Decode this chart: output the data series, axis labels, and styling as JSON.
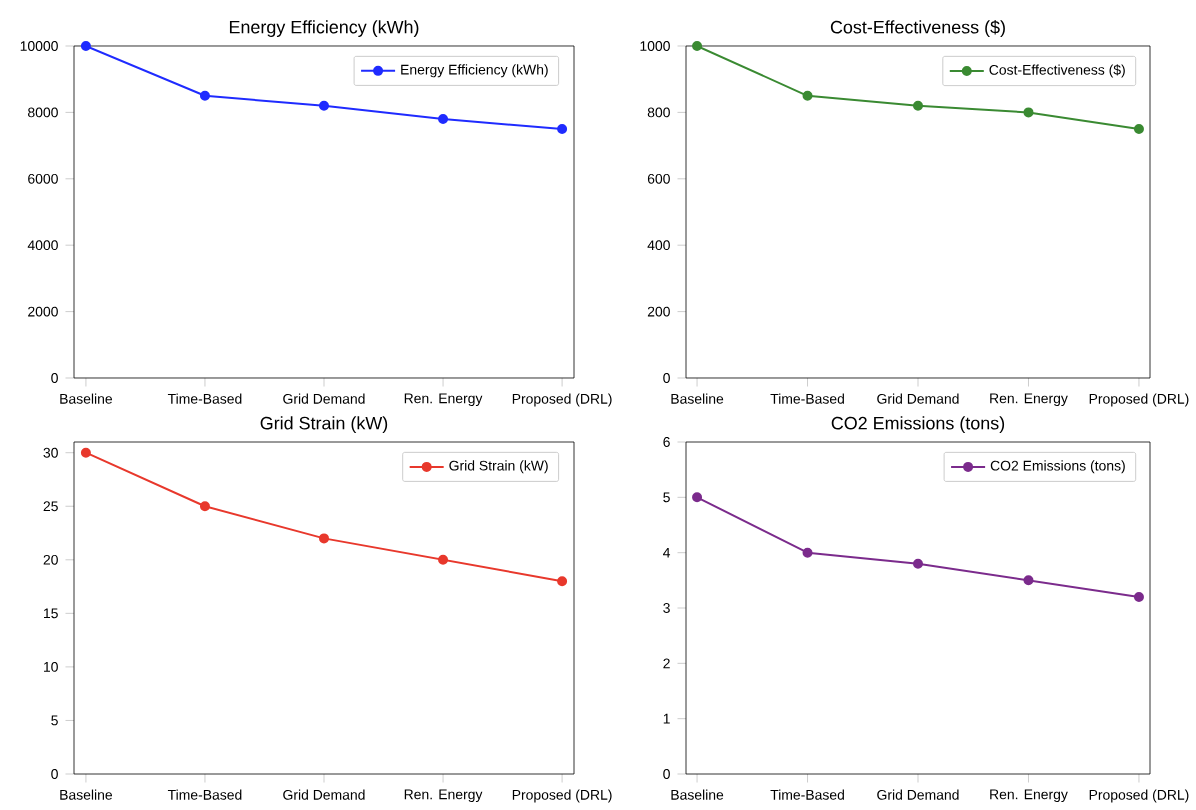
{
  "chart_data": [
    {
      "type": "line",
      "title": "Energy Efficiency (kWh)",
      "categories": [
        "Baseline",
        "Time-Based",
        "Grid Demand",
        "Ren. Energy",
        "Proposed (DRL)"
      ],
      "series": [
        {
          "name": "Energy Efficiency (kWh)",
          "color": "#1f2bff",
          "values": [
            10000,
            8500,
            8200,
            7800,
            7500
          ]
        }
      ],
      "ylim": [
        0,
        10000
      ],
      "yticks": [
        0,
        2000,
        4000,
        6000,
        8000,
        10000
      ],
      "legend": "top right",
      "marker": "circle"
    },
    {
      "type": "line",
      "title": "Cost-Effectiveness ($)",
      "categories": [
        "Baseline",
        "Time-Based",
        "Grid Demand",
        "Ren. Energy",
        "Proposed (DRL)"
      ],
      "series": [
        {
          "name": "Cost-Effectiveness ($)",
          "color": "#3a8a32",
          "values": [
            1000,
            850,
            820,
            800,
            750
          ]
        }
      ],
      "ylim": [
        0,
        1000
      ],
      "yticks": [
        0,
        200,
        400,
        600,
        800,
        1000
      ],
      "legend": "top right",
      "marker": "circle"
    },
    {
      "type": "line",
      "title": "Grid Strain (kW)",
      "categories": [
        "Baseline",
        "Time-Based",
        "Grid Demand",
        "Ren. Energy",
        "Proposed (DRL)"
      ],
      "series": [
        {
          "name": "Grid Strain (kW)",
          "color": "#e8382c",
          "values": [
            30,
            25,
            22,
            20,
            18
          ]
        }
      ],
      "ylim": [
        0,
        31
      ],
      "yticks": [
        0,
        5,
        10,
        15,
        20,
        25,
        30
      ],
      "legend": "top right",
      "marker": "circle"
    },
    {
      "type": "line",
      "title": "CO2 Emissions (tons)",
      "categories": [
        "Baseline",
        "Time-Based",
        "Grid Demand",
        "Ren. Energy",
        "Proposed (DRL)"
      ],
      "series": [
        {
          "name": "CO2 Emissions (tons)",
          "color": "#7b2b8c",
          "values": [
            5,
            4,
            3.8,
            3.5,
            3.2
          ]
        }
      ],
      "ylim": [
        0,
        6
      ],
      "yticks": [
        0,
        1,
        2,
        3,
        4,
        5,
        6
      ],
      "legend": "top right",
      "marker": "circle"
    }
  ]
}
